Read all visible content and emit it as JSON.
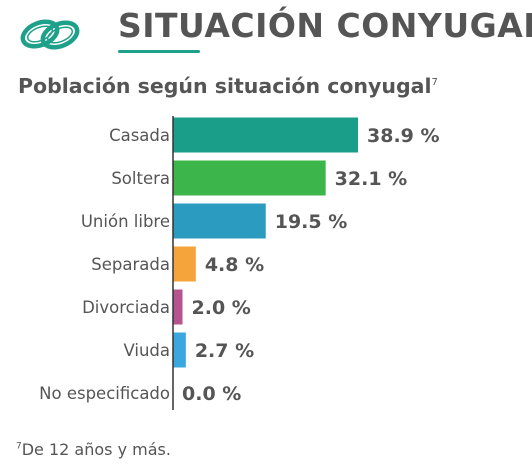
{
  "header": {
    "title": "SITUACIÓN CONYUGAL",
    "icon": "wedding-rings-icon",
    "accent_color": "#1fa08a"
  },
  "subtitle": {
    "text": "Población según situación conyugal",
    "note_ref": "7"
  },
  "footnote": {
    "ref": "7",
    "text": "De 12 años y más."
  },
  "chart_data": {
    "type": "bar",
    "orientation": "horizontal",
    "categories": [
      "Casada",
      "Soltera",
      "Unión libre",
      "Separada",
      "Divorciada",
      "Viuda",
      "No especificado"
    ],
    "values": [
      38.9,
      32.1,
      19.5,
      4.8,
      2.0,
      2.7,
      0.0
    ],
    "value_labels": [
      "38.9 %",
      "32.1 %",
      "19.5 %",
      "4.8 %",
      "2.0 %",
      "2.7 %",
      "0.0 %"
    ],
    "colors": [
      "#1a9e8a",
      "#3cb54a",
      "#2b9bbf",
      "#f5a43b",
      "#b5548f",
      "#3aa8de",
      "#cccccc"
    ],
    "unit": "%",
    "grid": false,
    "legend": "none"
  }
}
